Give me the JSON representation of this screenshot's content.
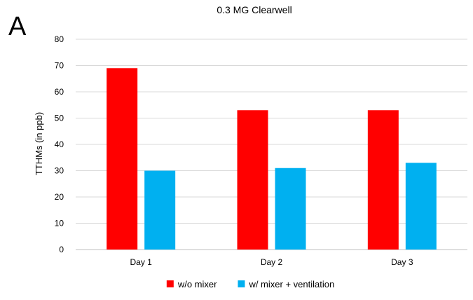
{
  "panel_label": "A",
  "chart_data": {
    "type": "bar",
    "title": "0.3 MG Clearwell",
    "xlabel": "",
    "ylabel": "TTHMs (in ppb)",
    "categories": [
      "Day 1",
      "Day 2",
      "Day 3"
    ],
    "series": [
      {
        "name": "w/o mixer",
        "values": [
          69,
          53,
          53
        ],
        "color": "#ff0000"
      },
      {
        "name": "w/ mixer + ventilation",
        "values": [
          30,
          31,
          33
        ],
        "color": "#00b0f0"
      }
    ],
    "ylim": [
      0,
      80
    ],
    "yticks": [
      0,
      10,
      20,
      30,
      40,
      50,
      60,
      70,
      80
    ],
    "grid": true,
    "legend_position": "bottom-center",
    "colors": {
      "gridline": "#d9d9d9",
      "axis": "#bfbfbf"
    }
  }
}
